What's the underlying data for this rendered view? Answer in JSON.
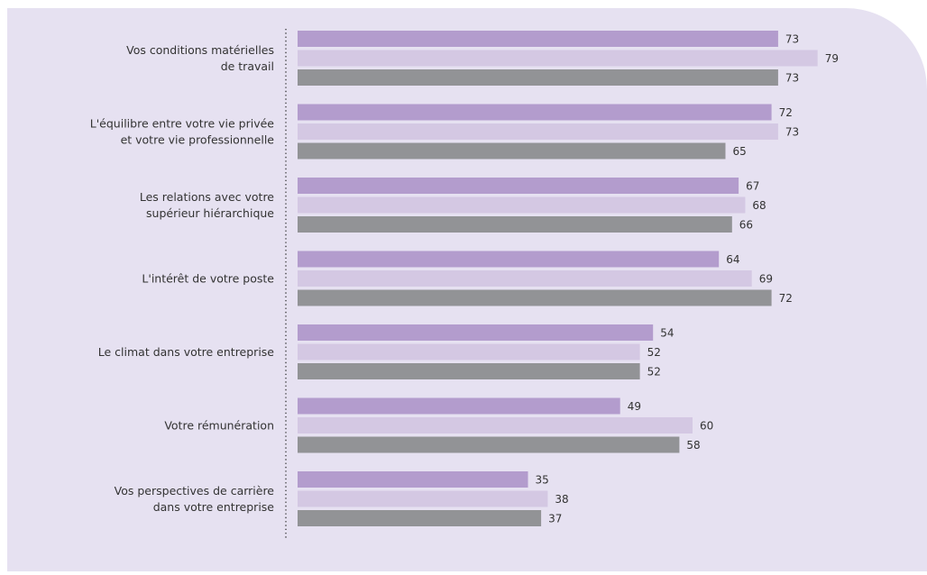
{
  "chart_data": {
    "type": "bar",
    "orientation": "horizontal",
    "categories": [
      [
        "Vos conditions matérielles",
        "de travail"
      ],
      [
        "L'équilibre entre votre vie privée",
        "et votre vie professionnelle"
      ],
      [
        "Les relations avec votre",
        "supérieur hiérarchique"
      ],
      [
        "L'intérêt de votre poste"
      ],
      [
        "Le climat dans votre entreprise"
      ],
      [
        "Votre rémunération"
      ],
      [
        "Vos perspectives de carrière",
        "dans votre entreprise"
      ]
    ],
    "series": [
      {
        "values": [
          73,
          72,
          67,
          64,
          54,
          49,
          35
        ],
        "color": "#b39ccd"
      },
      {
        "values": [
          79,
          73,
          68,
          69,
          52,
          60,
          38
        ],
        "color": "#d4c8e3"
      },
      {
        "values": [
          73,
          65,
          66,
          72,
          52,
          58,
          37
        ],
        "color": "#929396"
      }
    ],
    "xlim": [
      0,
      100
    ],
    "grid": false,
    "legend": "none"
  },
  "colors": {
    "panel_background": "#e6e1f1",
    "label_text": "#333333",
    "axis_line": "#333333"
  }
}
